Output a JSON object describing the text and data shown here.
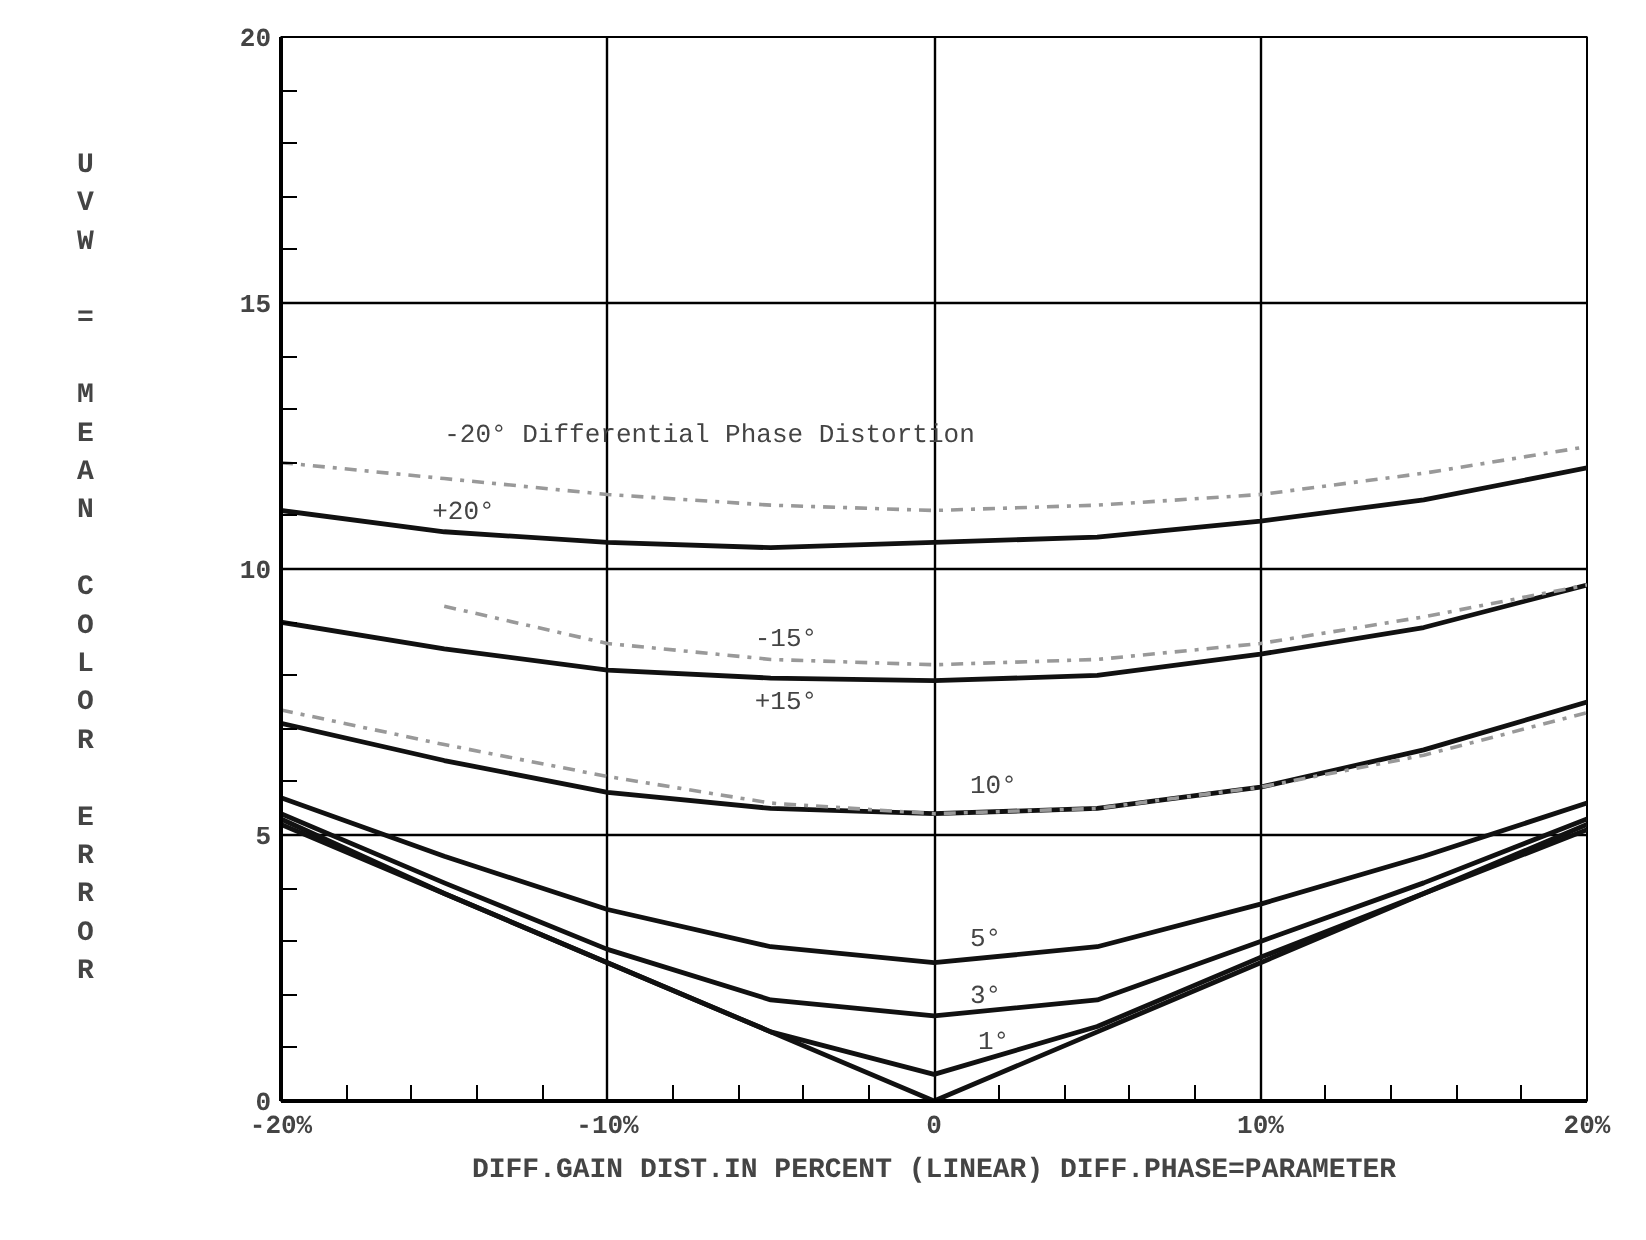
{
  "chart_data": {
    "type": "line",
    "xlabel": "DIFF.GAIN DIST.IN PERCENT (LINEAR) DIFF.PHASE=PARAMETER",
    "ylabel": "UVW = MEAN COLOR ERROR",
    "x": [
      -20,
      -15,
      -10,
      -5,
      0,
      5,
      10,
      15,
      20
    ],
    "series": [
      {
        "color": "#111111",
        "line_style": "solid",
        "values": [
          11.1,
          10.7,
          10.5,
          10.4,
          10.5,
          10.6,
          10.9,
          11.3,
          11.9
        ]
      },
      {
        "color": "#999999",
        "line_style": "dashed",
        "values": [
          12.0,
          11.7,
          11.4,
          11.2,
          11.1,
          11.2,
          11.4,
          11.8,
          12.3
        ]
      },
      {
        "color": "#111111",
        "line_style": "solid",
        "values": [
          9.0,
          8.5,
          8.1,
          7.95,
          7.9,
          8.0,
          8.4,
          8.9,
          9.7
        ]
      },
      {
        "color": "#999999",
        "line_style": "dashed",
        "values": [
          null,
          9.3,
          8.6,
          8.3,
          8.2,
          8.3,
          8.6,
          9.1,
          9.7
        ]
      },
      {
        "color": "#111111",
        "line_style": "solid",
        "values": [
          7.1,
          6.4,
          5.8,
          5.5,
          5.4,
          5.5,
          5.9,
          6.6,
          7.5
        ]
      },
      {
        "color": "#999999",
        "line_style": "dashed",
        "values": [
          7.35,
          6.7,
          6.1,
          5.6,
          5.4,
          5.5,
          5.9,
          6.5,
          7.3
        ]
      },
      {
        "color": "#111111",
        "line_style": "solid",
        "values": [
          5.7,
          4.6,
          3.6,
          2.9,
          2.6,
          2.9,
          3.7,
          4.6,
          5.6
        ]
      },
      {
        "color": "#111111",
        "line_style": "solid",
        "values": [
          5.4,
          4.1,
          2.85,
          1.9,
          1.6,
          1.9,
          3.0,
          4.1,
          5.3
        ]
      },
      {
        "color": "#111111",
        "line_style": "solid",
        "values": [
          5.3,
          3.9,
          2.6,
          1.3,
          0.5,
          1.4,
          2.7,
          3.9,
          5.2
        ]
      },
      {
        "color": "#111111",
        "line_style": "solid",
        "values": [
          5.2,
          3.9,
          2.6,
          1.3,
          0,
          1.3,
          2.6,
          3.9,
          5.1
        ]
      }
    ],
    "annotations": [
      {
        "text": "-20° Differential Phase Distortion",
        "x": -15,
        "y": 11.7
      },
      {
        "text": "+20°",
        "x": -15,
        "y": 10.7
      },
      {
        "text": "-15°",
        "x": -5,
        "y": 8.3
      },
      {
        "text": "+15°",
        "x": -5,
        "y": 7.95
      },
      {
        "text": "10°",
        "x": 0,
        "y": 5.4
      },
      {
        "text": "5°",
        "x": 0,
        "y": 2.6
      },
      {
        "text": "3°",
        "x": 0,
        "y": 1.6
      },
      {
        "text": "1°",
        "x": 0,
        "y": 0.5
      }
    ],
    "xlim": [
      -20,
      20
    ],
    "ylim": [
      0,
      20
    ],
    "xticks": [
      {
        "value": -20,
        "label": "-20%"
      },
      {
        "value": -18,
        "label": null
      },
      {
        "value": -16,
        "label": null
      },
      {
        "value": -14,
        "label": null
      },
      {
        "value": -12,
        "label": null
      },
      {
        "value": -10,
        "label": "-10%"
      },
      {
        "value": -8,
        "label": null
      },
      {
        "value": -6,
        "label": null
      },
      {
        "value": -4,
        "label": null
      },
      {
        "value": -2,
        "label": null
      },
      0,
      {
        "value": 2,
        "label": null
      },
      {
        "value": 4,
        "label": null
      },
      {
        "value": 6,
        "label": null
      },
      {
        "value": 8,
        "label": null
      },
      {
        "value": 10,
        "label": "10%"
      },
      {
        "value": 12,
        "label": null
      },
      {
        "value": 14,
        "label": null
      },
      {
        "value": 16,
        "label": null
      },
      {
        "value": 18,
        "label": null
      },
      {
        "value": 20,
        "label": "20%"
      }
    ],
    "yticks": [
      0,
      {
        "value": 1,
        "label": null
      },
      {
        "value": 2,
        "label": null
      },
      {
        "value": 3,
        "label": null
      },
      {
        "value": 4,
        "label": null
      },
      5,
      {
        "value": 6,
        "label": null
      },
      {
        "value": 7,
        "label": null
      },
      {
        "value": 8,
        "label": null
      },
      {
        "value": 9,
        "label": null
      },
      10,
      {
        "value": 11,
        "label": null
      },
      {
        "value": 12,
        "label": null
      },
      {
        "value": 13,
        "label": null
      },
      {
        "value": 14,
        "label": null
      },
      15,
      {
        "value": 16,
        "label": null
      },
      {
        "value": 17,
        "label": null
      },
      {
        "value": 18,
        "label": null
      },
      {
        "value": 19,
        "label": null
      },
      20
    ],
    "grid": true,
    "marker": "none"
  }
}
